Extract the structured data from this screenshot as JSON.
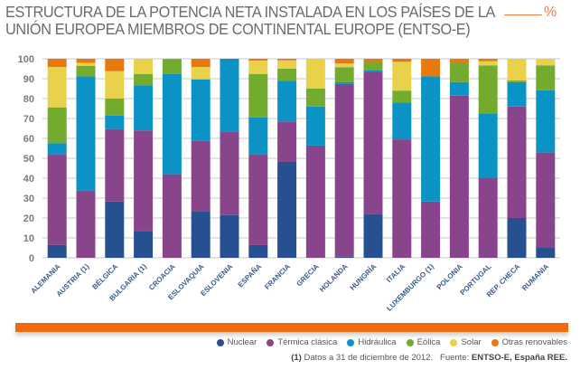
{
  "header": {
    "title_line1": "ESTRUCTURA DE LA POTENCIA NETA INSTALADA EN LOS PAÍSES DE LA",
    "title_line2": "UNIÓN EUROPEA MIEMBROS DE CONTINENTAL EUROPE (ENTSO-E)",
    "unit": "%"
  },
  "footer": {
    "note_marker": "(1)",
    "note_text": "Datos a 31 de diciembre de 2012.",
    "source_label": "Fuente:",
    "source_text": "ENTSO-E, España REE."
  },
  "colors": {
    "accent": "#f26a10",
    "axis_text": "#7a7a7a",
    "gridline": "#c8c8c8"
  },
  "chart_data": {
    "type": "bar",
    "stacked": true,
    "title": "ESTRUCTURA DE LA POTENCIA NETA INSTALADA EN LOS PAÍSES DE LA UNIÓN EUROPEA MIEMBROS DE CONTINENTAL EUROPE (ENTSO-E)",
    "xlabel": "",
    "ylabel": "%",
    "ylim": [
      0,
      100
    ],
    "yticks": [
      0,
      10,
      20,
      30,
      40,
      50,
      60,
      70,
      80,
      90,
      100
    ],
    "grid": true,
    "legend_position": "bottom-right",
    "categories": [
      "ALEMANIA",
      "AUSTRIA (1)",
      "BÉLGICA",
      "BULGARIA (1)",
      "CROACIA",
      "ESLOVAQUIA",
      "ESLOVENIA",
      "ESPAÑA",
      "FRANCIA",
      "GRECIA",
      "HOLANDA",
      "HUNGRÍA",
      "ITALIA",
      "LUXEMBURGO (1)",
      "POLONIA",
      "PORTUGAL",
      "REP. CHECA",
      "RUMANIA"
    ],
    "series": [
      {
        "name": "Nuclear",
        "color": "#26508f",
        "values": [
          6.5,
          0,
          28.3,
          13.5,
          0,
          23.5,
          21.5,
          6.4,
          48.2,
          0,
          0.5,
          22.0,
          0,
          0,
          0,
          0,
          20.0,
          5.2
        ]
      },
      {
        "name": "Térmica clásica",
        "color": "#88458c",
        "values": [
          45.5,
          33.8,
          36.4,
          50.5,
          42.0,
          35.3,
          41.7,
          45.6,
          20.3,
          56.4,
          86.8,
          71.6,
          59.5,
          28.3,
          81.5,
          40.2,
          56.0,
          47.7
        ]
      },
      {
        "name": "Hidráulica",
        "color": "#0a93c4",
        "values": [
          5.6,
          57.4,
          6.7,
          22.7,
          50.3,
          30.9,
          36.8,
          18.5,
          20.4,
          19.6,
          0.9,
          0.8,
          18.5,
          62.9,
          6.8,
          32.4,
          12.3,
          31.3
        ]
      },
      {
        "name": "Eólica",
        "color": "#72ab2e",
        "values": [
          18.0,
          5.3,
          8.6,
          5.7,
          7.3,
          0,
          0,
          21.9,
          6.1,
          9.1,
          7.6,
          4.0,
          6.0,
          0,
          9.4,
          24.1,
          0.8,
          12.5
        ]
      },
      {
        "name": "Solar",
        "color": "#e9d24a",
        "values": [
          20.3,
          1.5,
          13.8,
          7.6,
          0,
          6.2,
          0,
          6.7,
          4.2,
          14.9,
          1.8,
          0,
          14.5,
          0,
          0,
          2.1,
          10.9,
          3.3
        ]
      },
      {
        "name": "Otras renovables",
        "color": "#e8790f",
        "values": [
          4.1,
          2.0,
          6.2,
          0,
          0.4,
          4.1,
          0,
          0.9,
          0.8,
          0,
          2.4,
          1.6,
          1.5,
          8.8,
          2.3,
          1.2,
          0,
          0
        ]
      }
    ]
  }
}
